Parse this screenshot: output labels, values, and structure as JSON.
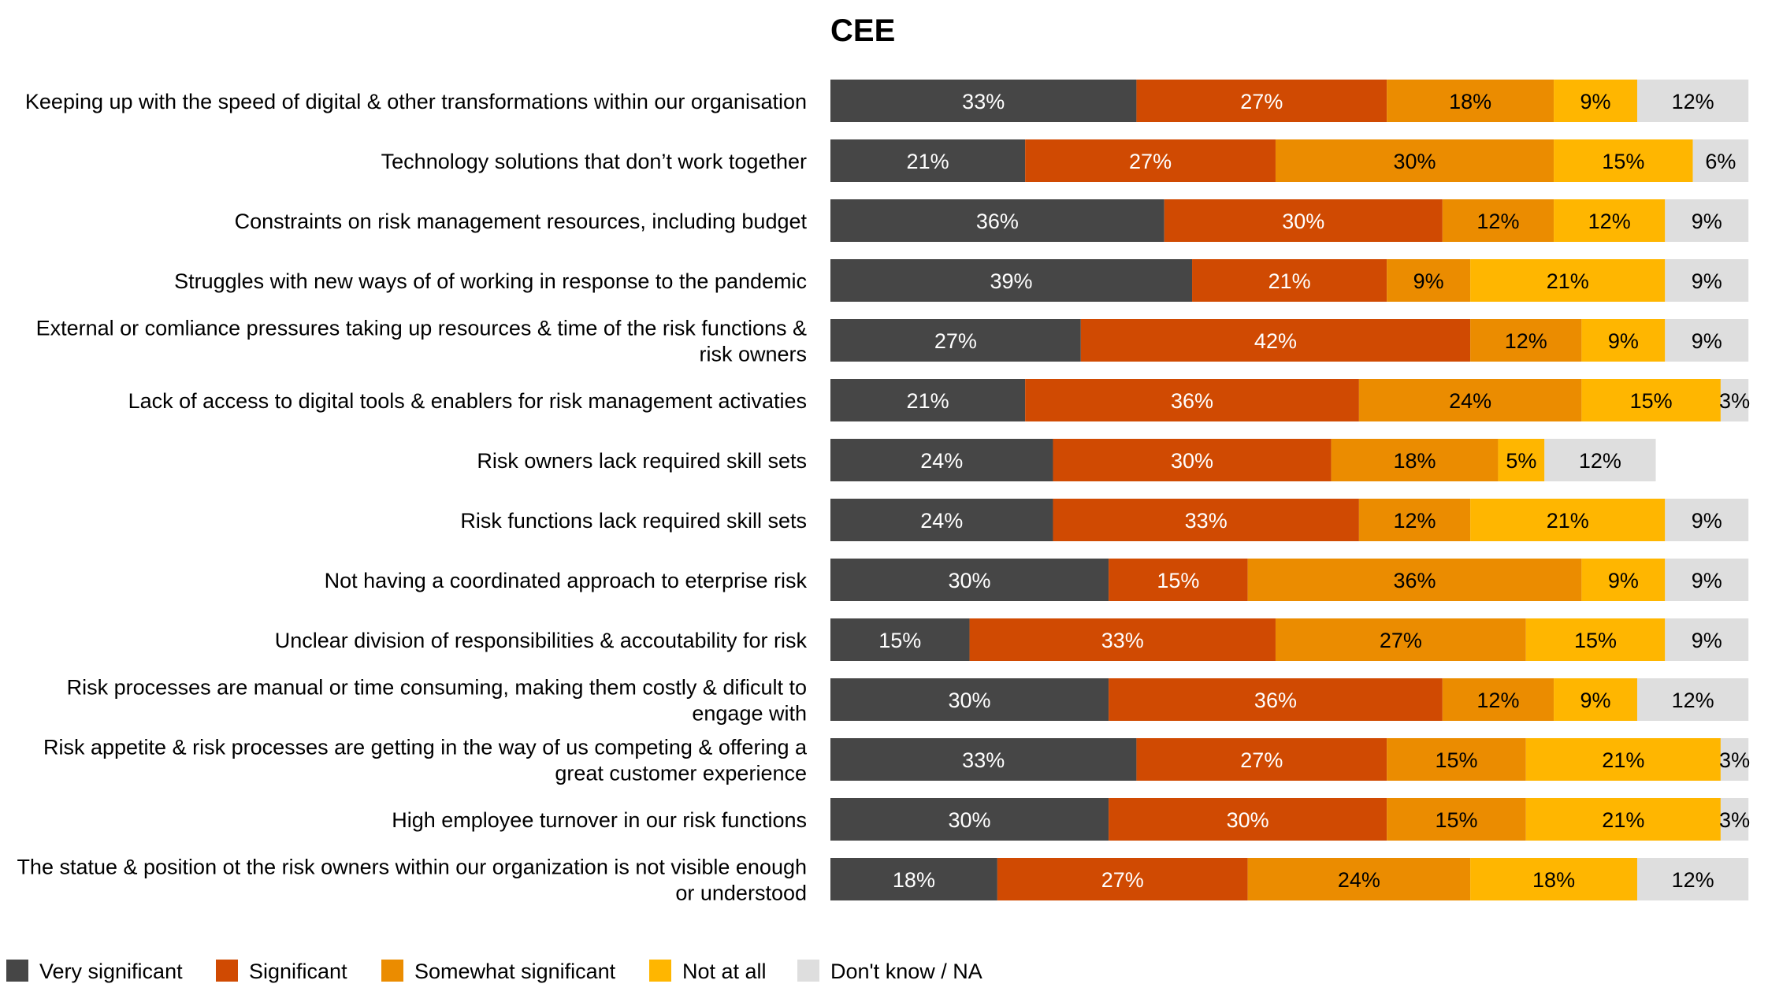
{
  "chart_data": {
    "type": "bar",
    "orientation": "horizontal",
    "stacked": true,
    "title": "CEE",
    "xlabel": "",
    "ylabel": "",
    "xlim": [
      0,
      100
    ],
    "legend_position": "bottom",
    "categories": [
      [
        "Keeping up with the speed of digital & other transformations within our organisation"
      ],
      [
        "Technology solutions that don’t work together"
      ],
      [
        "Constraints on risk management resources, including budget"
      ],
      [
        "Struggles with new ways of of working in response to the pandemic"
      ],
      [
        "External or comliance pressures taking up resources & time of the risk functions &",
        "risk owners"
      ],
      [
        "Lack of access to digital tools & enablers for risk management activaties"
      ],
      [
        "Risk owners lack required skill sets"
      ],
      [
        "Risk functions lack required skill sets"
      ],
      [
        "Not having a coordinated approach to eterprise risk"
      ],
      [
        "Unclear division of responsibilities & accoutability for risk"
      ],
      [
        "Risk processes are manual or time consuming, making them costly & dificult to",
        "engage with"
      ],
      [
        "Risk appetite & risk processes are getting in the way of us competing & offering a",
        "great customer experience"
      ],
      [
        "High employee turnover in our risk functions"
      ],
      [
        "The statue & position ot the risk owners within our organization is not visible enough",
        "or understood"
      ]
    ],
    "series": [
      {
        "name": "Very significant",
        "color": "#464646",
        "label_color": "#ffffff",
        "values": [
          33,
          21,
          36,
          39,
          27,
          21,
          24,
          24,
          30,
          15,
          30,
          33,
          30,
          18
        ]
      },
      {
        "name": "Significant",
        "color": "#d04a02",
        "label_color": "#ffffff",
        "values": [
          27,
          27,
          30,
          21,
          42,
          36,
          30,
          33,
          15,
          33,
          36,
          27,
          30,
          27
        ]
      },
      {
        "name": "Somewhat significant",
        "color": "#eb8c00",
        "label_color": "#000000",
        "values": [
          18,
          30,
          12,
          9,
          12,
          24,
          18,
          12,
          36,
          27,
          12,
          15,
          15,
          24
        ]
      },
      {
        "name": "Not at all",
        "color": "#ffb600",
        "label_color": "#000000",
        "values": [
          9,
          15,
          12,
          21,
          9,
          15,
          5,
          21,
          9,
          15,
          9,
          21,
          21,
          18
        ]
      },
      {
        "name": "Don't know / NA",
        "color": "#dedede",
        "label_color": "#000000",
        "values": [
          12,
          6,
          9,
          9,
          9,
          3,
          12,
          9,
          9,
          9,
          12,
          3,
          3,
          12
        ]
      }
    ]
  }
}
